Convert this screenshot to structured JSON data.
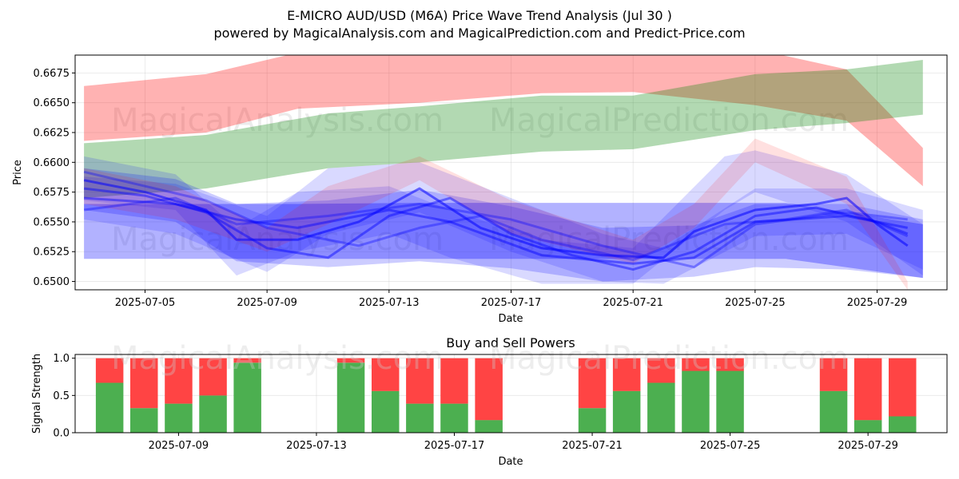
{
  "title": "E-MICRO AUD/USD (M6A) Price Wave Trend Analysis (Jul 30 )",
  "subtitle": "powered by MagicalAnalysis.com and MagicalPrediction.com and Predict-Price.com",
  "watermarks": [
    "MagicalAnalysis.com",
    "MagicalPrediction.com"
  ],
  "chart_data": [
    {
      "type": "area",
      "name": "price-wave-chart",
      "xlabel": "Date",
      "ylabel": "Price",
      "xlim": [
        "2025-07-02T17:00",
        "2025-07-31T07:00"
      ],
      "ylim": [
        0.6493,
        0.669
      ],
      "xticks": [
        "2025-07-05",
        "2025-07-09",
        "2025-07-13",
        "2025-07-17",
        "2025-07-21",
        "2025-07-25",
        "2025-07-29"
      ],
      "yticks": [
        0.65,
        0.6525,
        0.655,
        0.6575,
        0.66,
        0.6625,
        0.665,
        0.6675
      ],
      "grid": true,
      "colors": {
        "red": "#ff0000",
        "green": "#008000",
        "blue": "#0000ff"
      },
      "bands": [
        {
          "color": "red",
          "opacity": 0.3,
          "x": [
            "2025-07-03",
            "2025-07-07",
            "2025-07-10",
            "2025-07-14",
            "2025-07-18",
            "2025-07-21",
            "2025-07-25",
            "2025-07-28",
            "2025-07-30T12:00"
          ],
          "upper": [
            0.6664,
            0.6674,
            0.6692,
            0.67,
            0.6705,
            0.6705,
            0.6695,
            0.6678,
            0.6612
          ],
          "lower": [
            0.6618,
            0.6625,
            0.6645,
            0.665,
            0.6658,
            0.6659,
            0.6648,
            0.6635,
            0.658
          ]
        },
        {
          "color": "green",
          "opacity": 0.3,
          "x": [
            "2025-07-03",
            "2025-07-07",
            "2025-07-11",
            "2025-07-14",
            "2025-07-18",
            "2025-07-21",
            "2025-07-25",
            "2025-07-28",
            "2025-07-30T12:00"
          ],
          "upper": [
            0.6616,
            0.6623,
            0.6641,
            0.6647,
            0.6656,
            0.6656,
            0.6674,
            0.6678,
            0.6686
          ],
          "lower": [
            0.657,
            0.6578,
            0.6595,
            0.66,
            0.6609,
            0.6611,
            0.6627,
            0.6633,
            0.664
          ]
        },
        {
          "color": "blue",
          "opacity": 0.3,
          "x": [
            "2025-07-03",
            "2025-07-07",
            "2025-07-10",
            "2025-07-14",
            "2025-07-18",
            "2025-07-22",
            "2025-07-26",
            "2025-07-30T12:00"
          ],
          "upper": [
            0.6565,
            0.6565,
            0.6565,
            0.6566,
            0.6566,
            0.6566,
            0.6566,
            0.6548
          ],
          "lower": [
            0.6519,
            0.6519,
            0.6519,
            0.6519,
            0.6519,
            0.6519,
            0.6519,
            0.6503
          ]
        },
        {
          "color": "blue",
          "opacity": 0.2,
          "x": [
            "2025-07-03",
            "2025-07-06",
            "2025-07-08",
            "2025-07-11",
            "2025-07-14",
            "2025-07-17",
            "2025-07-20",
            "2025-07-23",
            "2025-07-25",
            "2025-07-28",
            "2025-07-30T12:00"
          ],
          "upper": [
            0.6595,
            0.6586,
            0.6565,
            0.6568,
            0.6577,
            0.6563,
            0.6545,
            0.6547,
            0.6565,
            0.6565,
            0.6552
          ],
          "lower": [
            0.656,
            0.655,
            0.6517,
            0.6512,
            0.6517,
            0.6511,
            0.65,
            0.6504,
            0.6512,
            0.651,
            0.6503
          ]
        },
        {
          "color": "blue",
          "opacity": 0.15,
          "x": [
            "2025-07-03",
            "2025-07-06",
            "2025-07-08",
            "2025-07-10",
            "2025-07-13",
            "2025-07-15",
            "2025-07-18",
            "2025-07-21",
            "2025-07-24",
            "2025-07-25",
            "2025-07-28",
            "2025-07-30T12:00"
          ],
          "upper": [
            0.6605,
            0.659,
            0.6545,
            0.6575,
            0.658,
            0.656,
            0.6535,
            0.6528,
            0.6605,
            0.661,
            0.659,
            0.6548
          ],
          "lower": [
            0.6568,
            0.656,
            0.6505,
            0.6525,
            0.654,
            0.652,
            0.6498,
            0.6498,
            0.656,
            0.6575,
            0.655,
            0.6505
          ]
        },
        {
          "color": "blue",
          "opacity": 0.15,
          "x": [
            "2025-07-03",
            "2025-07-06",
            "2025-07-09",
            "2025-07-11",
            "2025-07-14",
            "2025-07-17",
            "2025-07-20",
            "2025-07-22",
            "2025-07-25",
            "2025-07-28",
            "2025-07-30T12:00"
          ],
          "upper": [
            0.6588,
            0.6582,
            0.6555,
            0.6595,
            0.66,
            0.657,
            0.654,
            0.6528,
            0.6578,
            0.6578,
            0.656
          ],
          "lower": [
            0.6552,
            0.654,
            0.6508,
            0.654,
            0.6558,
            0.6525,
            0.65,
            0.6498,
            0.6538,
            0.654,
            0.651
          ]
        },
        {
          "color": "red",
          "opacity": 0.12,
          "x": [
            "2025-07-03",
            "2025-07-06",
            "2025-07-09",
            "2025-07-11",
            "2025-07-14",
            "2025-07-17",
            "2025-07-21",
            "2025-07-23",
            "2025-07-25",
            "2025-07-28",
            "2025-07-30"
          ],
          "upper": [
            0.6595,
            0.658,
            0.6545,
            0.658,
            0.6605,
            0.6568,
            0.6535,
            0.6565,
            0.662,
            0.6588,
            0.65
          ],
          "lower": [
            0.6565,
            0.6552,
            0.6525,
            0.6548,
            0.6585,
            0.654,
            0.6515,
            0.6545,
            0.66,
            0.6565,
            0.6493
          ]
        }
      ],
      "lines": [
        {
          "color": "blue",
          "opacity": 0.55,
          "x": [
            "2025-07-03",
            "2025-07-05",
            "2025-07-07",
            "2025-07-08",
            "2025-07-10",
            "2025-07-12",
            "2025-07-14",
            "2025-07-16",
            "2025-07-18",
            "2025-07-20",
            "2025-07-22",
            "2025-07-23",
            "2025-07-25",
            "2025-07-27",
            "2025-07-28",
            "2025-07-29",
            "2025-07-30"
          ],
          "y": [
            0.6585,
            0.6575,
            0.656,
            0.6535,
            0.6535,
            0.655,
            0.6578,
            0.6545,
            0.6528,
            0.6522,
            0.652,
            0.6542,
            0.656,
            0.6565,
            0.657,
            0.6548,
            0.653
          ]
        },
        {
          "color": "blue",
          "opacity": 0.45,
          "x": [
            "2025-07-03",
            "2025-07-05",
            "2025-07-07",
            "2025-07-09",
            "2025-07-11",
            "2025-07-13",
            "2025-07-15",
            "2025-07-17",
            "2025-07-19",
            "2025-07-21",
            "2025-07-23",
            "2025-07-25",
            "2025-07-27",
            "2025-07-29",
            "2025-07-30"
          ],
          "y": [
            0.6578,
            0.6572,
            0.6558,
            0.6528,
            0.652,
            0.6555,
            0.657,
            0.654,
            0.6522,
            0.651,
            0.6525,
            0.6555,
            0.6562,
            0.655,
            0.654
          ]
        },
        {
          "color": "blue",
          "opacity": 0.45,
          "x": [
            "2025-07-03",
            "2025-07-06",
            "2025-07-08",
            "2025-07-10",
            "2025-07-13",
            "2025-07-15",
            "2025-07-18",
            "2025-07-21",
            "2025-07-23",
            "2025-07-25",
            "2025-07-28",
            "2025-07-30"
          ],
          "y": [
            0.657,
            0.6565,
            0.6552,
            0.6545,
            0.656,
            0.655,
            0.6522,
            0.6515,
            0.652,
            0.655,
            0.6555,
            0.6545
          ]
        },
        {
          "color": "blue",
          "opacity": 0.35,
          "x": [
            "2025-07-03",
            "2025-07-05",
            "2025-07-07",
            "2025-07-09",
            "2025-07-12",
            "2025-07-14",
            "2025-07-16",
            "2025-07-18",
            "2025-07-21",
            "2025-07-24",
            "2025-07-26",
            "2025-07-28",
            "2025-07-30"
          ],
          "y": [
            0.6592,
            0.658,
            0.6568,
            0.6545,
            0.653,
            0.6545,
            0.6555,
            0.6535,
            0.6518,
            0.6548,
            0.6552,
            0.656,
            0.6538
          ]
        },
        {
          "color": "blue",
          "opacity": 0.35,
          "x": [
            "2025-07-03",
            "2025-07-06",
            "2025-07-08",
            "2025-07-11",
            "2025-07-14",
            "2025-07-17",
            "2025-07-20",
            "2025-07-23",
            "2025-07-25",
            "2025-07-28",
            "2025-07-30"
          ],
          "y": [
            0.656,
            0.657,
            0.6548,
            0.6555,
            0.6565,
            0.6552,
            0.653,
            0.6512,
            0.6548,
            0.6558,
            0.6552
          ]
        }
      ]
    },
    {
      "type": "bar",
      "name": "buy-sell-powers-chart",
      "title": "Buy and Sell Powers",
      "xlabel": "Date",
      "ylabel": "Signal Strength",
      "xlim": [
        "2025-07-06T00:00",
        "2025-07-31T07:00"
      ],
      "ylim": [
        0,
        1.05
      ],
      "xticks": [
        "2025-07-09",
        "2025-07-13",
        "2025-07-17",
        "2025-07-21",
        "2025-07-25",
        "2025-07-29"
      ],
      "yticks": [
        0.0,
        0.5,
        1.0
      ],
      "colors": {
        "buy": "#4caf50",
        "sell": "#ff4444"
      },
      "dates": [
        "2025-07-07",
        "2025-07-08",
        "2025-07-09",
        "2025-07-10",
        "2025-07-11",
        "2025-07-14",
        "2025-07-15",
        "2025-07-16",
        "2025-07-17",
        "2025-07-18",
        "2025-07-21",
        "2025-07-22",
        "2025-07-23",
        "2025-07-24",
        "2025-07-25",
        "2025-07-28",
        "2025-07-29",
        "2025-07-30"
      ],
      "buy": [
        0.67,
        0.33,
        0.39,
        0.5,
        0.94,
        0.94,
        0.56,
        0.39,
        0.39,
        0.17,
        0.33,
        0.56,
        0.67,
        0.83,
        0.83,
        0.56,
        0.17,
        0.22
      ],
      "sell": [
        0.33,
        0.67,
        0.61,
        0.5,
        0.06,
        0.06,
        0.44,
        0.61,
        0.61,
        0.83,
        0.67,
        0.44,
        0.33,
        0.17,
        0.17,
        0.44,
        0.83,
        0.78
      ]
    }
  ]
}
